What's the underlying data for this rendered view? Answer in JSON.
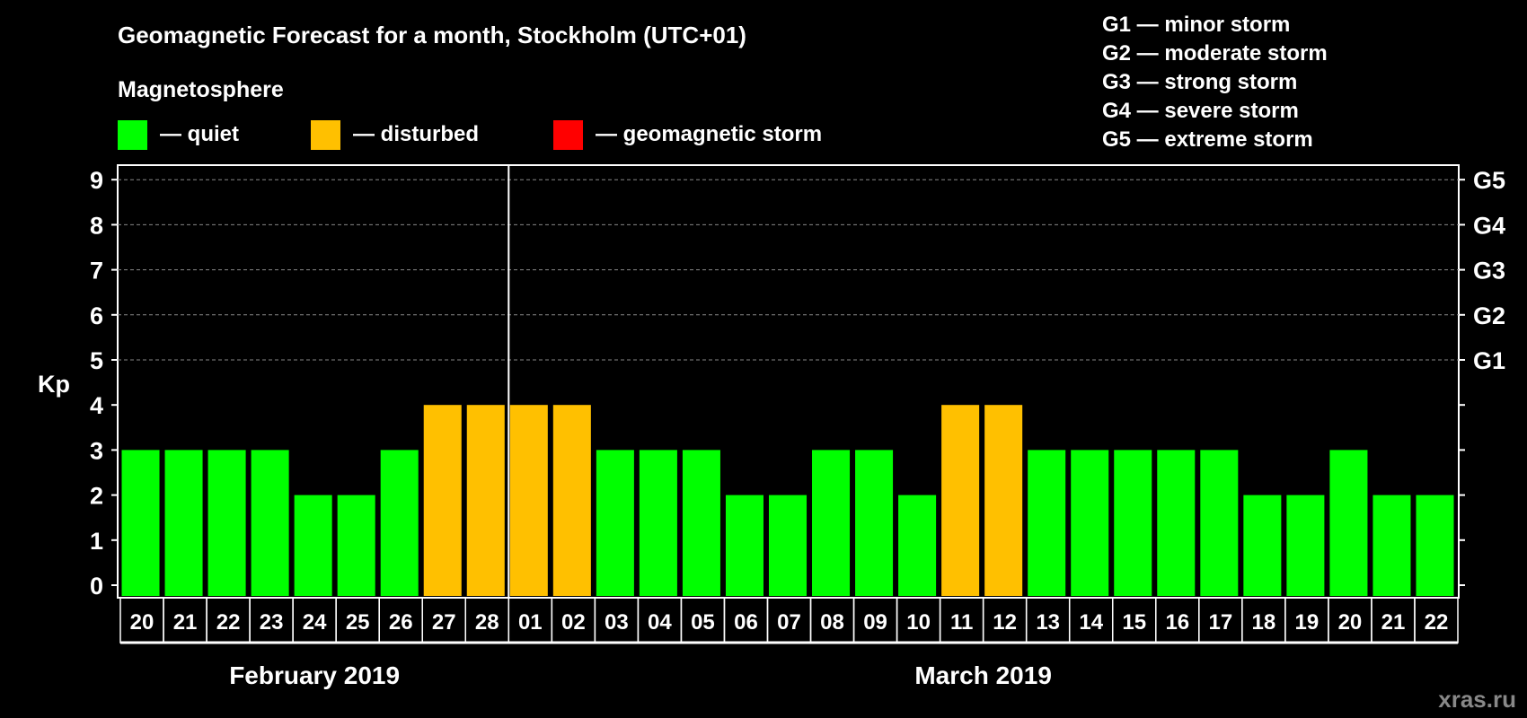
{
  "chart_data": {
    "type": "bar",
    "title": "Geomagnetic Forecast for a month, Stockholm (UTC+01)",
    "subtitle": "Magnetosphere",
    "ylabel": "Kp",
    "ylim": [
      0,
      9
    ],
    "yticks": [
      "0",
      "1",
      "2",
      "3",
      "4",
      "5",
      "6",
      "7",
      "8",
      "9"
    ],
    "right_ticks": [
      {
        "kp": 5,
        "label": "G1"
      },
      {
        "kp": 6,
        "label": "G2"
      },
      {
        "kp": 7,
        "label": "G3"
      },
      {
        "kp": 8,
        "label": "G4"
      },
      {
        "kp": 9,
        "label": "G5"
      }
    ],
    "grid": "dashed lines at Kp 5-9",
    "categories": [
      "20",
      "21",
      "22",
      "23",
      "24",
      "25",
      "26",
      "27",
      "28",
      "01",
      "02",
      "03",
      "04",
      "05",
      "06",
      "07",
      "08",
      "09",
      "10",
      "11",
      "12",
      "13",
      "14",
      "15",
      "16",
      "17",
      "18",
      "19",
      "20",
      "21",
      "22"
    ],
    "values": [
      3,
      3,
      3,
      3,
      2,
      2,
      3,
      4,
      4,
      4,
      4,
      3,
      3,
      3,
      2,
      2,
      3,
      3,
      2,
      4,
      4,
      3,
      3,
      3,
      3,
      3,
      2,
      2,
      3,
      2,
      2
    ],
    "months": [
      {
        "label": "February 2019",
        "days": 9
      },
      {
        "label": "March 2019",
        "days": 22
      }
    ],
    "legend": [
      {
        "label": "— quiet",
        "color": "#00ff00"
      },
      {
        "label": "— disturbed",
        "color": "#ffc000"
      },
      {
        "label": "— geomagnetic storm",
        "color": "#ff0000"
      }
    ],
    "storm_scale": [
      "G1 — minor storm",
      "G2 — moderate storm",
      "G3 — strong storm",
      "G4 — severe storm",
      "G5 — extreme storm"
    ]
  },
  "watermark": "xras.ru"
}
